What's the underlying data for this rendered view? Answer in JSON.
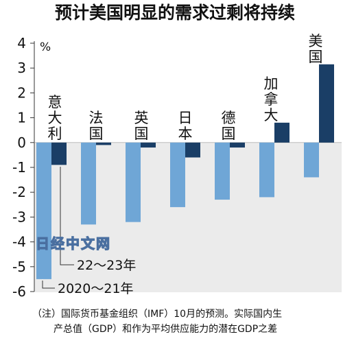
{
  "chart_data": {
    "type": "bar",
    "title": "预计美国明显的需求过剩将持续",
    "unit_label": "%",
    "categories": [
      "意大利",
      "法国",
      "英国",
      "日本",
      "德国",
      "加拿大",
      "美国"
    ],
    "series": [
      {
        "name": "2020～21年",
        "values": [
          -5.5,
          -3.3,
          -3.2,
          -2.6,
          -2.3,
          -2.2,
          -1.4
        ]
      },
      {
        "name": "22～23年",
        "values": [
          -0.9,
          -0.1,
          -0.2,
          -0.6,
          -0.2,
          0.8,
          3.15
        ]
      }
    ],
    "ylim": [
      -6,
      4
    ],
    "yticks": [
      "4",
      "3",
      "2",
      "1",
      "0",
      "-1",
      "-2",
      "-3",
      "-4",
      "-5",
      "-6"
    ],
    "colors": {
      "light": "#6fa6d6",
      "dark": "#1a3e66",
      "plot_bg": "#ebebeb"
    },
    "watermark": "日经中文网",
    "note": "（注）国际货币基金组织（IMF）10月的预测。实际国内生产总值（GDP）和作为平均供应能力的潜在GDP之差"
  }
}
